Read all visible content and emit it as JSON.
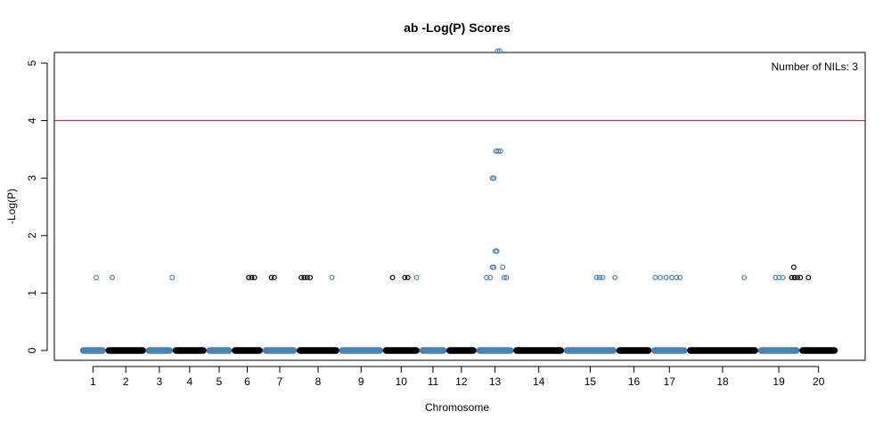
{
  "chart_data": {
    "type": "scatter",
    "title": "ab  -Log(P) Scores",
    "xlabel": "Chromosome",
    "ylabel": "-Log(P)",
    "ylim": [
      -0.15,
      5.4
    ],
    "yticks": [
      0,
      1,
      2,
      3,
      4,
      5
    ],
    "threshold": 4,
    "annotation": "Number of NILs: 3",
    "colors": {
      "blue": "#4682b4",
      "black": "#000000",
      "threshold": "#e00000"
    },
    "chromosomes": [
      {
        "label": "1",
        "start": 0.0,
        "end": 3.5
      },
      {
        "label": "2",
        "start": 3.5,
        "end": 9.0
      },
      {
        "label": "3",
        "start": 9.0,
        "end": 12.7
      },
      {
        "label": "4",
        "start": 12.7,
        "end": 17.3
      },
      {
        "label": "5",
        "start": 17.3,
        "end": 20.8
      },
      {
        "label": "6",
        "start": 20.8,
        "end": 25.0
      },
      {
        "label": "7",
        "start": 25.0,
        "end": 29.7
      },
      {
        "label": "8",
        "start": 29.7,
        "end": 35.5
      },
      {
        "label": "9",
        "start": 35.5,
        "end": 41.5
      },
      {
        "label": "10",
        "start": 41.5,
        "end": 46.5
      },
      {
        "label": "11",
        "start": 46.5,
        "end": 50.2
      },
      {
        "label": "12",
        "start": 50.2,
        "end": 54.3
      },
      {
        "label": "13",
        "start": 54.3,
        "end": 59.4
      },
      {
        "label": "14",
        "start": 59.4,
        "end": 66.3
      },
      {
        "label": "15",
        "start": 66.3,
        "end": 73.5
      },
      {
        "label": "16",
        "start": 73.5,
        "end": 78.3
      },
      {
        "label": "17",
        "start": 78.3,
        "end": 83.2
      },
      {
        "label": "18",
        "start": 83.2,
        "end": 92.9
      },
      {
        "label": "19",
        "start": 92.9,
        "end": 98.6
      },
      {
        "label": "20",
        "start": 98.6,
        "end": 103.8
      }
    ],
    "series": [
      {
        "color": "blue",
        "points": [
          [
            2.2,
            1.27
          ],
          [
            4.4,
            1.27
          ],
          [
            12.6,
            1.27
          ],
          [
            34.5,
            1.27
          ],
          [
            46.1,
            1.27
          ],
          [
            55.7,
            1.27
          ],
          [
            56.2,
            1.27
          ],
          [
            56.5,
            1.45
          ],
          [
            56.7,
            1.45
          ],
          [
            56.9,
            1.73
          ],
          [
            57.1,
            1.73
          ],
          [
            56.5,
            3.0
          ],
          [
            56.7,
            3.0
          ],
          [
            57.0,
            3.47
          ],
          [
            57.3,
            3.47
          ],
          [
            57.6,
            3.47
          ],
          [
            57.2,
            5.21
          ],
          [
            57.5,
            5.21
          ],
          [
            57.9,
            1.45
          ],
          [
            58.1,
            1.27
          ],
          [
            58.4,
            1.27
          ],
          [
            70.8,
            1.27
          ],
          [
            71.2,
            1.27
          ],
          [
            71.6,
            1.27
          ],
          [
            73.3,
            1.27
          ],
          [
            78.8,
            1.27
          ],
          [
            79.5,
            1.27
          ],
          [
            80.3,
            1.27
          ],
          [
            81.1,
            1.27
          ],
          [
            81.7,
            1.27
          ],
          [
            82.2,
            1.27
          ],
          [
            91.0,
            1.27
          ],
          [
            95.3,
            1.27
          ],
          [
            95.8,
            1.27
          ],
          [
            96.3,
            1.27
          ]
        ]
      },
      {
        "color": "black",
        "points": [
          [
            23.1,
            1.27
          ],
          [
            23.5,
            1.27
          ],
          [
            23.9,
            1.27
          ],
          [
            26.2,
            1.27
          ],
          [
            26.6,
            1.27
          ],
          [
            30.3,
            1.27
          ],
          [
            30.7,
            1.27
          ],
          [
            31.1,
            1.27
          ],
          [
            31.5,
            1.27
          ],
          [
            42.8,
            1.27
          ],
          [
            44.5,
            1.27
          ],
          [
            44.9,
            1.27
          ],
          [
            97.5,
            1.27
          ],
          [
            97.9,
            1.27
          ],
          [
            98.3,
            1.27
          ],
          [
            98.7,
            1.27
          ],
          [
            97.8,
            1.45
          ],
          [
            99.8,
            1.27
          ]
        ]
      }
    ]
  }
}
